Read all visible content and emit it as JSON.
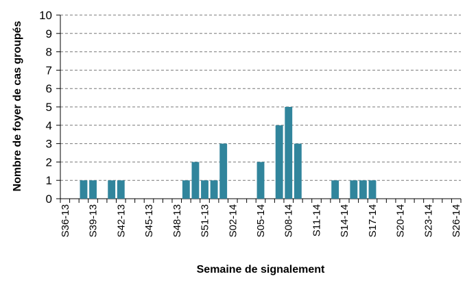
{
  "chart_data": {
    "type": "bar",
    "x_label": "Semaine de signalement",
    "y_label": "Nombre de foyer de cas groupés",
    "categories": [
      "S36-13",
      null,
      null,
      "S39-13",
      null,
      null,
      "S42-13",
      null,
      null,
      "S45-13",
      null,
      null,
      "S48-13",
      null,
      null,
      "S51-13",
      null,
      null,
      "S02-14",
      null,
      null,
      "S05-14",
      null,
      null,
      "S08-14",
      null,
      null,
      "S11-14",
      null,
      null,
      "S14-14",
      null,
      null,
      "S17-14",
      null,
      null,
      "S20-14",
      null,
      null,
      "S23-14",
      null,
      null,
      "S26-14"
    ],
    "values": [
      0,
      0,
      1,
      1,
      0,
      1,
      1,
      0,
      0,
      0,
      0,
      0,
      0,
      1,
      2,
      1,
      1,
      3,
      0,
      0,
      0,
      2,
      0,
      4,
      5,
      3,
      0,
      0,
      0,
      1,
      0,
      1,
      1,
      1,
      0,
      0,
      0,
      0,
      0,
      0,
      0,
      0,
      0
    ],
    "color": "#31859c",
    "ylim": [
      0,
      10
    ],
    "yticks": [
      0,
      1,
      2,
      3,
      4,
      5,
      6,
      7,
      8,
      9,
      10
    ],
    "grid": true
  }
}
